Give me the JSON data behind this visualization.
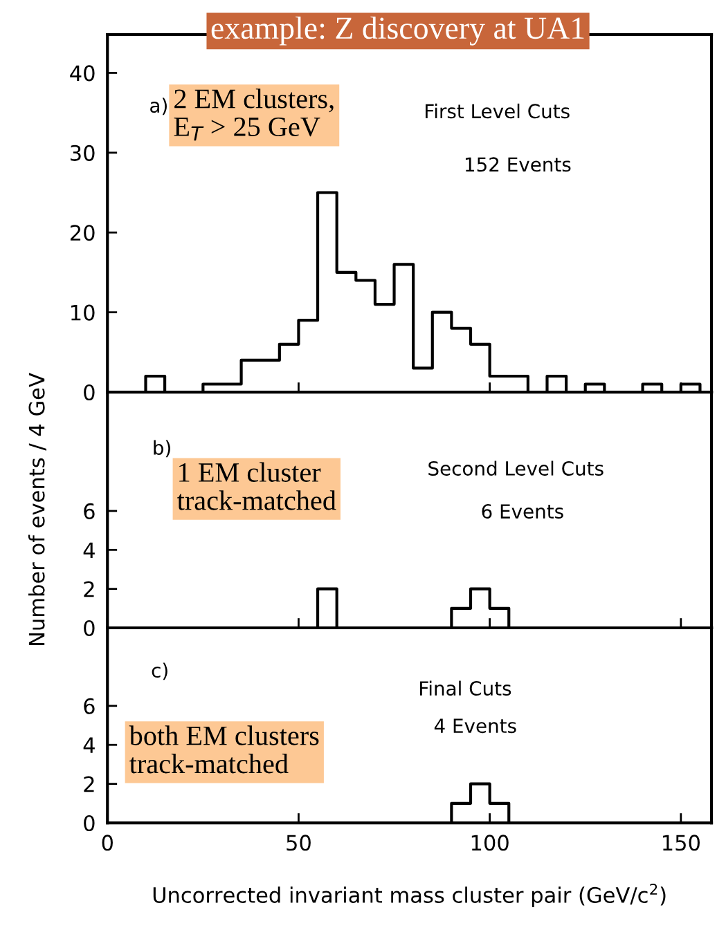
{
  "chart_data": [
    {
      "type": "histogram",
      "title": "example: Z discovery at UA1",
      "bins": [
        10,
        15,
        20,
        25,
        30,
        35,
        40,
        45,
        50,
        55,
        60,
        65,
        70,
        75,
        80,
        85,
        90,
        95,
        100,
        105,
        110,
        115,
        120,
        125,
        130,
        135,
        140,
        145,
        150,
        155
      ],
      "values": [
        2,
        0,
        0,
        1,
        1,
        4,
        4,
        6,
        9,
        25,
        15,
        14,
        11,
        16,
        3,
        10,
        8,
        6,
        2,
        2,
        0,
        2,
        0,
        1,
        0,
        0,
        1,
        0,
        1
      ],
      "color": "#000000",
      "xlim": [
        0,
        158
      ],
      "ylim": [
        0,
        44.8
      ],
      "xticks": [
        0,
        50,
        100,
        150
      ],
      "yticks": [
        0,
        10,
        20,
        30,
        40
      ],
      "tick_labels": "y",
      "grid": false,
      "annotations": [
        "a)",
        "2 EM clusters,\nE$_{T}$ > 25 GeV",
        "First Level Cuts",
        "152 Events"
      ]
    },
    {
      "type": "histogram",
      "ylabel": "Number of events / 4 GeV",
      "bins": [
        55,
        60,
        65,
        70,
        75,
        80,
        85,
        90,
        95,
        100,
        105
      ],
      "values": [
        2,
        0,
        0,
        0,
        0,
        0,
        0,
        1,
        2,
        1
      ],
      "color": "#000000",
      "xlim": [
        0,
        158
      ],
      "ylim": [
        0,
        12.1
      ],
      "xticks": [
        0,
        50,
        100,
        150
      ],
      "yticks": [
        0,
        2,
        4,
        6
      ],
      "tick_labels": "y",
      "grid": false,
      "annotations": [
        "b)",
        "1 EM cluster\ntrack-matched",
        "Second Level Cuts",
        "6 Events"
      ]
    },
    {
      "type": "histogram",
      "xlabel": "Uncorrected invariant mass cluster pair (GeV/c$^{2}$)",
      "bins": [
        90,
        95,
        100,
        105
      ],
      "values": [
        1,
        2,
        1
      ],
      "color": "#000000",
      "xlim": [
        0,
        158
      ],
      "ylim": [
        0,
        10
      ],
      "xticks": [
        0,
        50,
        100,
        150
      ],
      "yticks": [
        0,
        2,
        4,
        6
      ],
      "grid": false,
      "annotations": [
        "c)",
        "both EM clusters\ntrack-matched",
        "Final Cuts",
        "4 Events"
      ]
    }
  ]
}
